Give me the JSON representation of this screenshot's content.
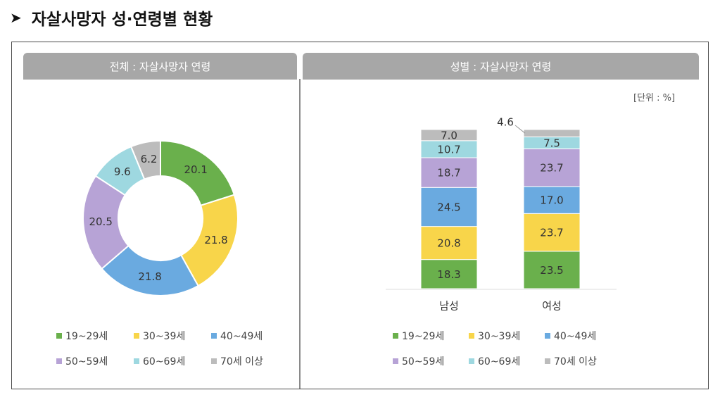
{
  "header": {
    "arrow": "➤",
    "title": "자살사망자 성·연령별 현황"
  },
  "panels": {
    "left_title": "전체 : 자살사망자 연령",
    "right_title": "성별 : 자살사망자 연령",
    "unit": "[단위 : %]"
  },
  "colors": {
    "19~29세": "#6ab04c",
    "30~39세": "#f8d54a",
    "40~49세": "#6aaae0",
    "50~59세": "#b7a3d6",
    "60~69세": "#9ed8e0",
    "70세 이상": "#bcbcbc"
  },
  "legend": [
    "19~29세",
    "30~39세",
    "40~49세",
    "50~59세",
    "60~69세",
    "70세 이상"
  ],
  "chart_data": [
    {
      "type": "pie",
      "title": "전체 : 자살사망자 연령",
      "labels": [
        "19~29세",
        "30~39세",
        "40~49세",
        "50~59세",
        "60~69세",
        "70세 이상"
      ],
      "values": [
        20.1,
        21.8,
        21.8,
        20.5,
        9.6,
        6.2
      ]
    },
    {
      "type": "bar",
      "stacked": true,
      "title": "성별 : 자살사망자 연령",
      "categories": [
        "남성",
        "여성"
      ],
      "series": [
        {
          "name": "19~29세",
          "values": [
            18.3,
            23.5
          ]
        },
        {
          "name": "30~39세",
          "values": [
            20.8,
            23.7
          ]
        },
        {
          "name": "40~49세",
          "values": [
            24.5,
            17.0
          ]
        },
        {
          "name": "50~59세",
          "values": [
            18.7,
            23.7
          ]
        },
        {
          "name": "60~69세",
          "values": [
            10.7,
            7.5
          ]
        },
        {
          "name": "70세 이상",
          "values": [
            7.0,
            4.6
          ]
        }
      ],
      "ylim": [
        0,
        100
      ]
    }
  ]
}
